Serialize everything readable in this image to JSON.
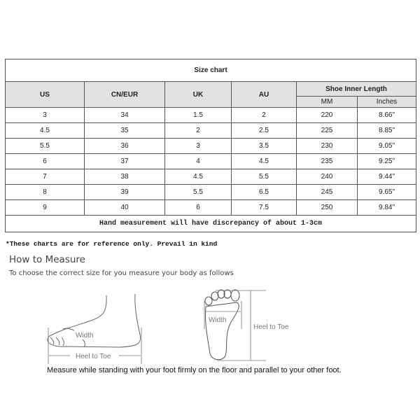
{
  "table": {
    "title": "Size chart",
    "headers": [
      "US",
      "CN/EUR",
      "UK",
      "AU",
      "Shoe Inner Length"
    ],
    "subheaders": [
      "MM",
      "Inches"
    ],
    "rows": [
      [
        "3",
        "34",
        "1.5",
        "2",
        "220",
        "8.66\""
      ],
      [
        "4.5",
        "35",
        "2",
        "2.5",
        "225",
        "8.85\""
      ],
      [
        "5.5",
        "36",
        "3",
        "3.5",
        "230",
        "9.05\""
      ],
      [
        "6",
        "37",
        "4",
        "4.5",
        "235",
        "9.25\""
      ],
      [
        "7",
        "38",
        "4.5",
        "5.5",
        "240",
        "9.44\""
      ],
      [
        "8",
        "39",
        "5.5",
        "6.5",
        "245",
        "9.65\""
      ],
      [
        "9",
        "40",
        "6",
        "7.5",
        "250",
        "9.84\""
      ]
    ],
    "note": "Hand measurement will have discrepancy of about 1-3cm"
  },
  "reference_note": "*These charts are for reference only. Prevail in kind",
  "how_to": {
    "title": "How to Measure",
    "subtitle": "To choose the correct size for you measure your body as follows",
    "side_width_label": "Width",
    "side_length_label": "Heel to Toe",
    "sole_width_label": "Width",
    "sole_length_label": "Heel to Toe",
    "instruction": "Measure while standing with your foot firmly on the floor and parallel to your other foot."
  }
}
